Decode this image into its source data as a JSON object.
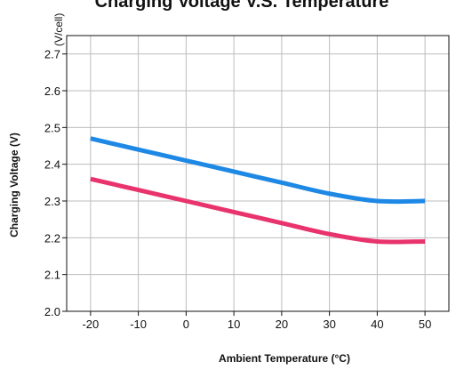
{
  "chart_data": {
    "type": "line",
    "title": "Charging Voltage V.S. Temperature",
    "unit_label": "(V/cell)",
    "xlabel": "Ambient Temperature (°C)",
    "ylabel": "Charging Voltage (V)",
    "x_ticks": [
      "-20",
      "-10",
      "0",
      "10",
      "20",
      "30",
      "40",
      "50"
    ],
    "y_ticks": [
      "2.0",
      "2.1",
      "2.2",
      "2.3",
      "2.4",
      "2.5",
      "2.6",
      "2.7"
    ],
    "xlim": [
      -25,
      55
    ],
    "ylim": [
      2.0,
      2.75
    ],
    "grid": true,
    "x": [
      -20,
      -10,
      0,
      10,
      20,
      30,
      40,
      50
    ],
    "series": [
      {
        "color": "#1e88e5",
        "values": [
          2.47,
          2.44,
          2.41,
          2.38,
          2.35,
          2.32,
          2.3,
          2.3
        ]
      },
      {
        "color": "#e8336d",
        "values": [
          2.36,
          2.33,
          2.3,
          2.27,
          2.24,
          2.21,
          2.19,
          2.19
        ]
      }
    ]
  }
}
